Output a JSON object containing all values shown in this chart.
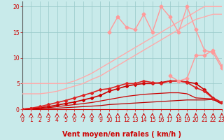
{
  "bg_color": "#c8eaea",
  "grid_color": "#98c8c8",
  "xlabel": "Vent moyen/en rafales ( km/h )",
  "xlabel_color": "#cc0000",
  "xlabel_fontsize": 7,
  "tick_color": "#cc0000",
  "tick_fontsize": 5.5,
  "ylim": [
    0,
    21
  ],
  "xlim": [
    0,
    23
  ],
  "yticks": [
    0,
    5,
    10,
    15,
    20
  ],
  "xticks": [
    0,
    1,
    2,
    3,
    4,
    5,
    6,
    7,
    8,
    9,
    10,
    11,
    12,
    13,
    14,
    15,
    16,
    17,
    18,
    19,
    20,
    21,
    22,
    23
  ],
  "lines": [
    {
      "x": [
        0,
        1,
        2,
        3,
        4,
        5,
        6,
        7,
        8,
        9,
        10,
        11,
        12,
        13,
        14,
        15,
        16,
        17,
        18,
        19,
        20,
        21,
        22,
        23
      ],
      "y": [
        0,
        0,
        0,
        0,
        0,
        0,
        0,
        0,
        0,
        0,
        0,
        0,
        0,
        0,
        0,
        0,
        0,
        0,
        0,
        0,
        0,
        0,
        0,
        0
      ],
      "color": "#ee4444",
      "lw": 0.7,
      "marker": null,
      "ms": 0
    },
    {
      "x": [
        0,
        1,
        2,
        3,
        4,
        5,
        6,
        7,
        8,
        9,
        10,
        11,
        12,
        13,
        14,
        15,
        16,
        17,
        18,
        19,
        20,
        21,
        22,
        23
      ],
      "y": [
        0,
        0.05,
        0.1,
        0.15,
        0.2,
        0.3,
        0.4,
        0.5,
        0.6,
        0.7,
        0.9,
        1.0,
        1.1,
        1.2,
        1.3,
        1.4,
        1.5,
        1.6,
        1.7,
        1.8,
        1.8,
        1.8,
        1.9,
        1.0
      ],
      "color": "#bb0000",
      "lw": 0.9,
      "marker": null,
      "ms": 0
    },
    {
      "x": [
        0,
        1,
        2,
        3,
        4,
        5,
        6,
        7,
        8,
        9,
        10,
        11,
        12,
        13,
        14,
        15,
        16,
        17,
        18,
        19,
        20,
        21,
        22,
        23
      ],
      "y": [
        0,
        0.1,
        0.2,
        0.3,
        0.5,
        0.7,
        0.9,
        1.1,
        1.3,
        1.6,
        1.9,
        2.2,
        2.5,
        2.7,
        2.9,
        3.0,
        3.1,
        3.2,
        3.2,
        3.0,
        2.2,
        2.1,
        2.0,
        1.2
      ],
      "color": "#cc0000",
      "lw": 0.9,
      "marker": null,
      "ms": 0
    },
    {
      "x": [
        0,
        1,
        2,
        3,
        4,
        5,
        6,
        7,
        8,
        9,
        10,
        11,
        12,
        13,
        14,
        15,
        16,
        17,
        18,
        19,
        20,
        21,
        22,
        23
      ],
      "y": [
        0,
        0.15,
        0.3,
        0.5,
        0.8,
        1.1,
        1.4,
        1.8,
        2.2,
        2.7,
        3.5,
        4.0,
        4.5,
        4.8,
        5.0,
        5.0,
        5.2,
        5.5,
        5.5,
        5.3,
        5.0,
        3.8,
        2.2,
        1.3
      ],
      "color": "#cc0000",
      "lw": 1.2,
      "marker": "D",
      "ms": 2.0
    },
    {
      "x": [
        0,
        1,
        2,
        3,
        4,
        5,
        6,
        7,
        8,
        9,
        10,
        11,
        12,
        13,
        14,
        15,
        16,
        17,
        18,
        19,
        20,
        21,
        22,
        23
      ],
      "y": [
        0,
        0.2,
        0.5,
        0.9,
        1.3,
        1.7,
        2.2,
        2.7,
        3.2,
        3.8,
        4.0,
        4.5,
        5.0,
        5.0,
        5.5,
        5.2,
        5.0,
        5.5,
        5.5,
        5.2,
        4.2,
        3.5,
        2.1,
        1.3
      ],
      "color": "#dd2222",
      "lw": 1.2,
      "marker": "D",
      "ms": 2.0
    },
    {
      "x": [
        0,
        1,
        2,
        3,
        4,
        5,
        6,
        7,
        8,
        9,
        10,
        11,
        12,
        13,
        14,
        15,
        16,
        17,
        18,
        19,
        20,
        21,
        22,
        23
      ],
      "y": [
        5,
        5,
        5,
        5,
        5,
        5,
        5.5,
        6.2,
        7.0,
        8.0,
        9.0,
        10.0,
        11.0,
        12.0,
        13.0,
        14.0,
        15.0,
        16.0,
        17.0,
        18.0,
        19.0,
        20.0,
        20.0,
        20.0
      ],
      "color": "#ffaaaa",
      "lw": 1.0,
      "marker": null,
      "ms": 0
    },
    {
      "x": [
        0,
        1,
        2,
        3,
        4,
        5,
        6,
        7,
        8,
        9,
        10,
        11,
        12,
        13,
        14,
        15,
        16,
        17,
        18,
        19,
        20,
        21,
        22,
        23
      ],
      "y": [
        3,
        3,
        3,
        3.2,
        3.5,
        4.0,
        4.5,
        5.0,
        5.8,
        6.5,
        7.5,
        8.5,
        9.5,
        10.5,
        11.5,
        12.5,
        13.5,
        14.5,
        15.5,
        16.5,
        17.5,
        18.0,
        18.5,
        18.5
      ],
      "color": "#ffaaaa",
      "lw": 1.0,
      "marker": null,
      "ms": 0
    },
    {
      "x": [
        10,
        11,
        12,
        13,
        14,
        15,
        16,
        17,
        18,
        19,
        20,
        21,
        22,
        23
      ],
      "y": [
        15.0,
        18.0,
        16.0,
        15.5,
        18.5,
        15.0,
        20.0,
        18.0,
        15.0,
        20.0,
        15.5,
        11.5,
        11.0,
        8.0
      ],
      "color": "#ff9999",
      "lw": 1.0,
      "marker": "D",
      "ms": 2.5
    },
    {
      "x": [
        17,
        18,
        19,
        20,
        21,
        22,
        23
      ],
      "y": [
        6.5,
        5.5,
        6.0,
        10.5,
        10.5,
        11.5,
        8.5
      ],
      "color": "#ff9999",
      "lw": 1.0,
      "marker": "D",
      "ms": 2.5
    }
  ],
  "wind_arrows": {
    "x": [
      0,
      1,
      2,
      3,
      4,
      5,
      6,
      7,
      8,
      9,
      10,
      11,
      12,
      13,
      14,
      15,
      16,
      17,
      18,
      19,
      20,
      21,
      22,
      23
    ],
    "color": "#cc0000",
    "lw": 0.6
  }
}
